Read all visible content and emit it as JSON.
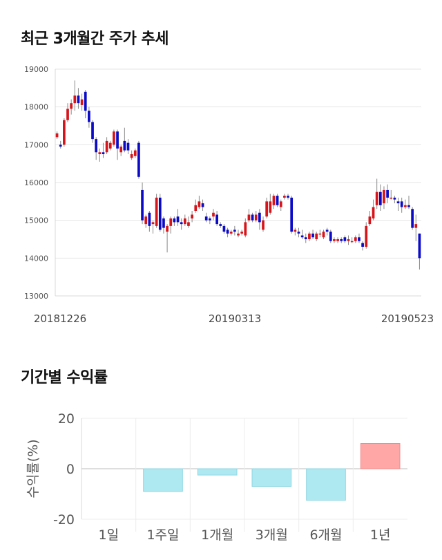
{
  "sections": {
    "price_title": "최근 3개월간 주가 추세",
    "return_title": "기간별 수익률"
  },
  "colors": {
    "up": "#d7141a",
    "down": "#0a0ac8",
    "positive_bar": "#ffa6a6",
    "negative_bar": "#aee9f2"
  },
  "chart_data": [
    {
      "type": "candlestick",
      "title": "최근 3개월간 주가 추세",
      "ylim": [
        13000,
        19000
      ],
      "y_ticks": [
        "19000",
        "18000",
        "17000",
        "16000",
        "15000",
        "14000",
        "13000"
      ],
      "x_tick_labels": [
        "20181226",
        "20190313",
        "20190523"
      ],
      "grid": true,
      "candles": [
        [
          17200,
          17300,
          17150,
          17350
        ],
        [
          17000,
          16950,
          16900,
          17100
        ],
        [
          17000,
          17650,
          16950,
          17700
        ],
        [
          17650,
          17950,
          17600,
          18100
        ],
        [
          17950,
          18100,
          17800,
          18200
        ],
        [
          18100,
          18300,
          17900,
          18700
        ],
        [
          18300,
          18100,
          17950,
          18500
        ],
        [
          18050,
          18200,
          17900,
          18350
        ],
        [
          18400,
          17900,
          17700,
          18450
        ],
        [
          17900,
          17600,
          17450,
          18000
        ],
        [
          17600,
          17150,
          17050,
          17650
        ],
        [
          17150,
          16800,
          16600,
          17200
        ],
        [
          16750,
          16800,
          16550,
          16900
        ],
        [
          16800,
          16750,
          16650,
          17050
        ],
        [
          16800,
          17100,
          16750,
          17200
        ],
        [
          16900,
          17050,
          16850,
          17100
        ],
        [
          17000,
          17350,
          16950,
          17400
        ],
        [
          17350,
          16900,
          16600,
          17400
        ],
        [
          16800,
          16950,
          16700,
          17000
        ],
        [
          17100,
          16850,
          16800,
          17450
        ],
        [
          17050,
          16850,
          16750,
          17150
        ],
        [
          16650,
          16750,
          16600,
          16850
        ],
        [
          16700,
          16850,
          16650,
          16900
        ],
        [
          17050,
          16150,
          16100,
          17100
        ],
        [
          15800,
          15000,
          14900,
          16000
        ],
        [
          14900,
          15100,
          14800,
          15150
        ],
        [
          15200,
          14850,
          14700,
          15250
        ],
        [
          14900,
          14950,
          14650,
          15000
        ],
        [
          14850,
          15600,
          14800,
          15700
        ],
        [
          15600,
          14750,
          14700,
          15700
        ],
        [
          15050,
          14800,
          14650,
          15100
        ],
        [
          14700,
          14850,
          14150,
          14900
        ],
        [
          14850,
          15050,
          14650,
          15100
        ],
        [
          15050,
          14950,
          14850,
          15100
        ],
        [
          15100,
          14950,
          14850,
          15300
        ],
        [
          14950,
          14900,
          14750,
          15050
        ],
        [
          14900,
          15050,
          14850,
          15150
        ],
        [
          14850,
          14950,
          14800,
          15100
        ],
        [
          15050,
          15150,
          14950,
          15250
        ],
        [
          15250,
          15400,
          15200,
          15550
        ],
        [
          15350,
          15500,
          15300,
          15650
        ],
        [
          15450,
          15350,
          15250,
          15550
        ],
        [
          15100,
          15000,
          14950,
          15200
        ],
        [
          15050,
          15000,
          14900,
          15100
        ],
        [
          15100,
          15200,
          15000,
          15300
        ],
        [
          15150,
          14900,
          14850,
          15250
        ],
        [
          14900,
          14850,
          14800,
          14950
        ],
        [
          14850,
          14700,
          14650,
          14900
        ],
        [
          14750,
          14650,
          14550,
          14800
        ],
        [
          14650,
          14700,
          14600,
          14750
        ],
        [
          14750,
          14700,
          14600,
          14850
        ],
        [
          14600,
          14650,
          14550,
          14750
        ],
        [
          14650,
          14700,
          14600,
          14750
        ],
        [
          14600,
          14950,
          14550,
          15050
        ],
        [
          15000,
          15150,
          14950,
          15300
        ],
        [
          15150,
          15000,
          14950,
          15200
        ],
        [
          15000,
          15150,
          14950,
          15250
        ],
        [
          15200,
          14950,
          14750,
          15300
        ],
        [
          14750,
          15000,
          14700,
          15100
        ],
        [
          15100,
          15500,
          15050,
          15600
        ],
        [
          15200,
          15500,
          15150,
          15700
        ],
        [
          15400,
          15650,
          15300,
          15700
        ],
        [
          15650,
          15400,
          15350,
          15700
        ],
        [
          15350,
          15500,
          15250,
          15550
        ],
        [
          15600,
          15650,
          15550,
          15700
        ],
        [
          15650,
          15600,
          15550,
          15700
        ],
        [
          15600,
          14700,
          14650,
          15650
        ],
        [
          14700,
          14750,
          14600,
          14800
        ],
        [
          14700,
          14650,
          14550,
          14800
        ],
        [
          14600,
          14550,
          14500,
          14750
        ],
        [
          14550,
          14500,
          14400,
          14650
        ],
        [
          14500,
          14650,
          14450,
          14700
        ],
        [
          14650,
          14550,
          14500,
          14750
        ],
        [
          14500,
          14650,
          14450,
          14700
        ],
        [
          14650,
          14650,
          14550,
          14750
        ],
        [
          14550,
          14700,
          14500,
          14750
        ],
        [
          14750,
          14700,
          14600,
          14800
        ],
        [
          14700,
          14450,
          14400,
          14750
        ],
        [
          14450,
          14500,
          14400,
          14550
        ],
        [
          14450,
          14500,
          14400,
          14550
        ],
        [
          14500,
          14450,
          14400,
          14550
        ],
        [
          14550,
          14450,
          14400,
          14600
        ],
        [
          14450,
          14500,
          14350,
          14600
        ],
        [
          14450,
          14450,
          14400,
          14550
        ],
        [
          14450,
          14550,
          14400,
          14600
        ],
        [
          14550,
          14450,
          14400,
          14650
        ],
        [
          14400,
          14300,
          14200,
          14450
        ],
        [
          14300,
          14850,
          14250,
          14950
        ],
        [
          14900,
          15100,
          14850,
          15250
        ],
        [
          15050,
          15350,
          15000,
          15550
        ],
        [
          15400,
          15750,
          15300,
          16100
        ],
        [
          15750,
          15400,
          15250,
          15950
        ],
        [
          15450,
          15800,
          15300,
          15900
        ],
        [
          15800,
          15600,
          15450,
          15950
        ],
        [
          15600,
          15600,
          15550,
          15800
        ],
        [
          15600,
          15550,
          15450,
          15650
        ],
        [
          15500,
          15450,
          15250,
          15600
        ],
        [
          15500,
          15350,
          15200,
          15600
        ],
        [
          15350,
          15400,
          15300,
          15550
        ],
        [
          15400,
          15350,
          15300,
          15650
        ],
        [
          15300,
          14800,
          14750,
          15350
        ],
        [
          14800,
          14900,
          14450,
          15150
        ],
        [
          14650,
          14000,
          13700,
          14650
        ]
      ]
    },
    {
      "type": "bar",
      "title": "기간별 수익률",
      "ylabel": "수익률(%)",
      "ylim": [
        -20,
        20
      ],
      "y_ticks": [
        "20",
        "0",
        "-20"
      ],
      "categories": [
        "1일",
        "1주일",
        "1개월",
        "3개월",
        "6개월",
        "1년"
      ],
      "values": [
        0,
        -9,
        -2.5,
        -7,
        -12.5,
        10
      ]
    }
  ]
}
